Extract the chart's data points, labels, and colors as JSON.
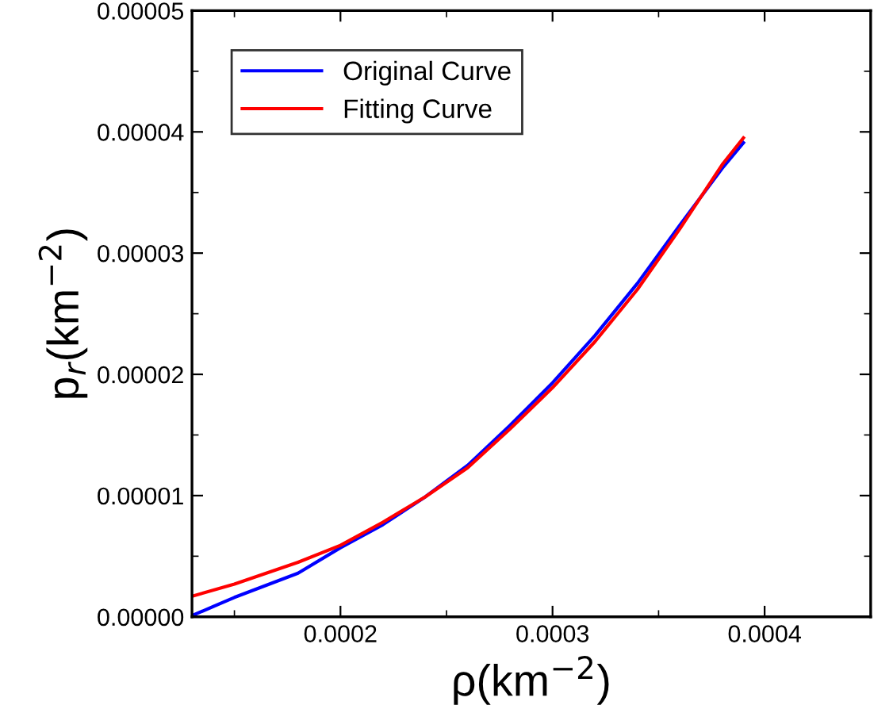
{
  "chart_data": {
    "type": "line",
    "xlabel": "ρ(km$^{−2}$)",
    "ylabel": "p$_{r}$(km$^{−2}$)",
    "xlim": [
      0.00013,
      0.00045
    ],
    "xticks": [
      0.0002,
      0.0003,
      0.0004
    ],
    "ylim": [
      0,
      5e-05
    ],
    "yticks": [
      {
        "value": 0,
        "label": "0.00000"
      },
      {
        "value": 1e-05,
        "label": "0.00001"
      },
      {
        "value": 2e-05,
        "label": "0.00002"
      },
      {
        "value": 3e-05,
        "label": "0.00003"
      },
      {
        "value": 4e-05,
        "label": "0.00004"
      },
      {
        "value": 5e-05,
        "label": "0.00005"
      }
    ],
    "x": [
      0.00013,
      0.00015,
      0.00018,
      0.0002,
      0.00022,
      0.00024,
      0.00026,
      0.00028,
      0.0003,
      0.00032,
      0.00034,
      0.00036,
      0.00038,
      0.00039
    ],
    "series": [
      {
        "name": "Original Curve",
        "color": "#0000ff",
        "values": [
          1e-07,
          1.6e-06,
          3.6e-06,
          5.7e-06,
          7.6e-06,
          9.9e-06,
          1.25e-05,
          1.58e-05,
          1.93e-05,
          2.32e-05,
          2.75e-05,
          3.23e-05,
          3.7e-05,
          3.91e-05
        ]
      },
      {
        "name": "Fitting Curve",
        "color": "#ff0000",
        "values": [
          1.7e-06,
          2.7e-06,
          4.5e-06,
          5.9e-06,
          7.8e-06,
          9.9e-06,
          1.23e-05,
          1.55e-05,
          1.89e-05,
          2.27e-05,
          2.7e-05,
          3.2e-05,
          3.73e-05,
          3.95e-05
        ]
      }
    ],
    "legend": "top left",
    "grid": false,
    "marker": "none",
    "line_style": "solid"
  }
}
